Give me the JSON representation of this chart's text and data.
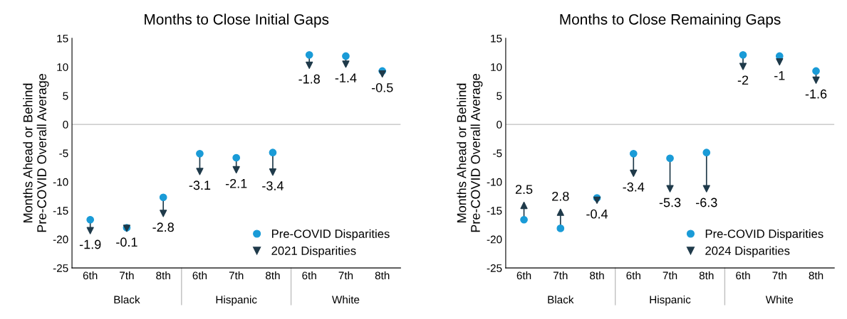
{
  "chart_data": [
    {
      "type": "scatter",
      "title": "Months to Close Initial Gaps",
      "ylabel": "Months Ahead or Behind\nPre-COVID Overall Average",
      "categories": [
        "6th",
        "7th",
        "8th",
        "6th",
        "7th",
        "8th",
        "6th",
        "7th",
        "8th"
      ],
      "ylim": [
        -25,
        15
      ],
      "yticks": [
        -25,
        -20,
        -15,
        -10,
        -5,
        0,
        5,
        10,
        15
      ],
      "legend": "bottom right",
      "ref_lines": [
        {
          "axis": "y",
          "value": 0,
          "color": "#bfbfbf"
        }
      ],
      "annotations": [
        "Black",
        "Hispanic",
        "White",
        {
          "text": "-1.9",
          "y": -18.5
        },
        {
          "text": "-0.1",
          "y": -18.1
        },
        {
          "text": "-2.8",
          "y": -15.5
        },
        {
          "text": "-3.1",
          "y": -8.2
        },
        {
          "text": "-2.1",
          "y": -7.9
        },
        {
          "text": "-3.4",
          "y": -8.3
        },
        {
          "text": "-1.8",
          "y": 10.3
        },
        {
          "text": "-1.4",
          "y": 10.5
        },
        {
          "text": "-0.5",
          "y": 8.8
        }
      ],
      "series": [
        {
          "name": "Pre-COVID Disparities",
          "color": "#1a9bd7",
          "marker": "circle",
          "values": [
            -16.6,
            -18.0,
            -12.7,
            -5.1,
            -5.8,
            -4.9,
            12.1,
            11.9,
            9.3
          ]
        },
        {
          "name": "2021 Disparities",
          "color": "#1f3a4a",
          "marker": "triangle",
          "values": [
            -18.5,
            -18.1,
            -15.5,
            -8.2,
            -7.9,
            -8.3,
            10.3,
            10.5,
            8.8
          ]
        }
      ]
    },
    {
      "type": "scatter",
      "title": "Months to Close Remaining Gaps",
      "ylabel": "Months Ahead or Behind\nPre-COVID Overall Average",
      "categories": [
        "6th",
        "7th",
        "8th",
        "6th",
        "7th",
        "8th",
        "6th",
        "7th",
        "8th"
      ],
      "ylim": [
        -25,
        15
      ],
      "yticks": [
        -25,
        -20,
        -15,
        -10,
        -5,
        0,
        5,
        10,
        15
      ],
      "legend": "bottom right",
      "ref_lines": [
        {
          "axis": "y",
          "value": 0,
          "color": "#bfbfbf"
        }
      ],
      "annotations": [
        "Black",
        "Hispanic",
        "White",
        {
          "text": "2.5",
          "y": -14.1
        },
        {
          "text": "2.8",
          "y": -15.3
        },
        {
          "text": "-0.4",
          "y": -13.2
        },
        {
          "text": "-3.4",
          "y": -8.5
        },
        {
          "text": "-5.3",
          "y": -11.2
        },
        {
          "text": "-6.3",
          "y": -11.2
        },
        {
          "text": "-2",
          "y": 10.1
        },
        {
          "text": "-1",
          "y": 10.9
        },
        {
          "text": "-1.6",
          "y": 7.7
        }
      ],
      "series": [
        {
          "name": "Pre-COVID Disparities",
          "color": "#1a9bd7",
          "marker": "circle",
          "values": [
            -16.6,
            -18.1,
            -12.8,
            -5.1,
            -5.9,
            -4.9,
            12.1,
            11.9,
            9.3
          ]
        },
        {
          "name": "2024 Disparities",
          "color": "#1f3a4a",
          "marker": "triangle",
          "values": [
            -14.1,
            -15.3,
            -13.2,
            -8.5,
            -11.2,
            -11.2,
            10.1,
            10.9,
            7.7
          ]
        }
      ]
    }
  ]
}
